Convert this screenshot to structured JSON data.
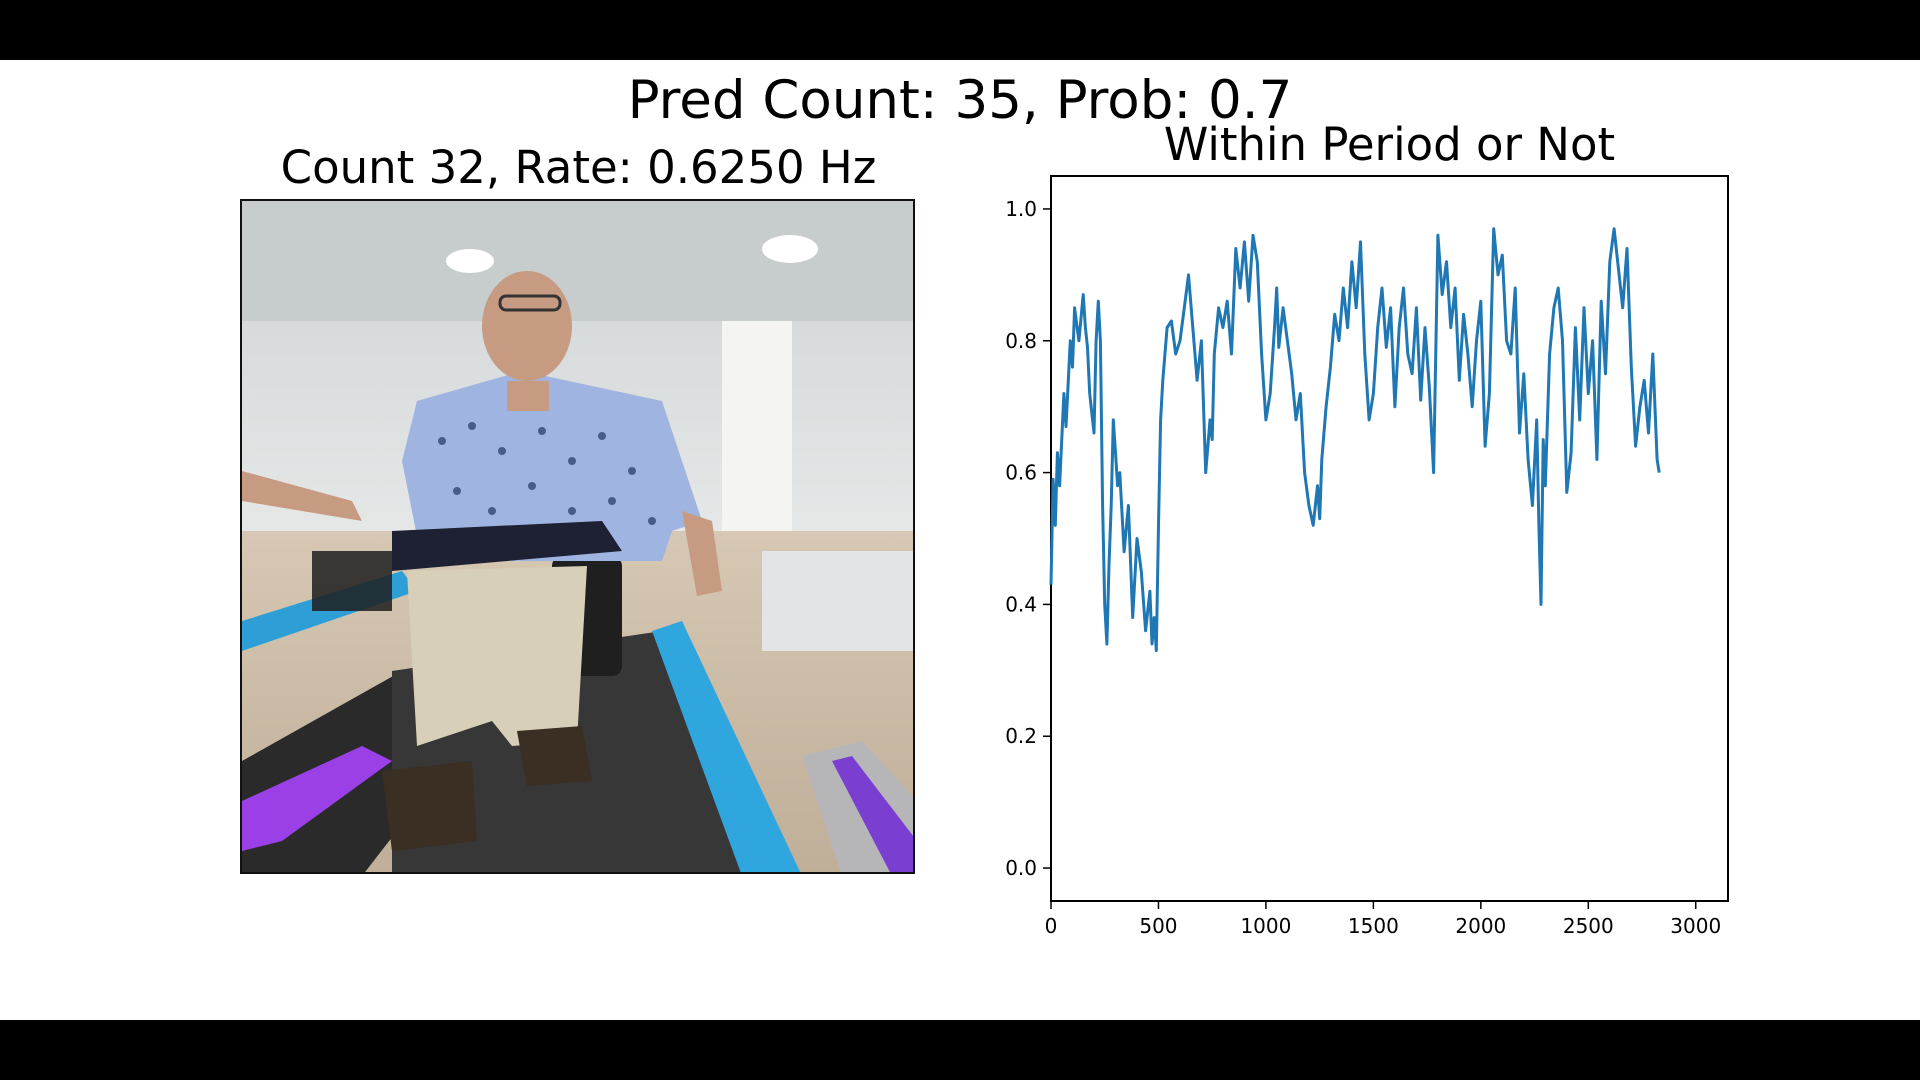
{
  "header": {
    "pred_title": "Pred Count: 35, Prob: 0.7"
  },
  "video_panel": {
    "title": "Count 32, Rate: 0.6250 Hz"
  },
  "chart_data": {
    "type": "line",
    "title": "Within Period or Not",
    "xlabel": "",
    "ylabel": "",
    "xlim": [
      0,
      3150
    ],
    "ylim": [
      -0.05,
      1.05
    ],
    "x_ticks": [
      0,
      500,
      1000,
      1500,
      2000,
      2500,
      3000
    ],
    "y_ticks": [
      0.0,
      0.2,
      0.4,
      0.6,
      0.8,
      1.0
    ],
    "x_tick_labels": [
      "0",
      "500",
      "1000",
      "1500",
      "2000",
      "2500",
      "3000"
    ],
    "y_tick_labels": [
      "0.0",
      "0.2",
      "0.4",
      "0.6",
      "0.8",
      "1.0"
    ],
    "grid": false,
    "series": [
      {
        "color": "#1f77b4",
        "x": [
          0,
          10,
          20,
          30,
          40,
          60,
          70,
          90,
          100,
          110,
          130,
          150,
          160,
          170,
          180,
          200,
          210,
          220,
          230,
          240,
          250,
          260,
          270,
          280,
          290,
          300,
          310,
          320,
          340,
          360,
          380,
          400,
          420,
          440,
          460,
          470,
          480,
          490,
          500,
          510,
          520,
          540,
          560,
          580,
          600,
          620,
          640,
          660,
          680,
          700,
          720,
          740,
          750,
          760,
          780,
          800,
          820,
          840,
          860,
          880,
          900,
          920,
          940,
          960,
          980,
          1000,
          1020,
          1040,
          1050,
          1060,
          1080,
          1100,
          1120,
          1140,
          1160,
          1180,
          1200,
          1220,
          1240,
          1250,
          1260,
          1280,
          1300,
          1320,
          1340,
          1360,
          1380,
          1400,
          1420,
          1440,
          1460,
          1480,
          1500,
          1520,
          1540,
          1560,
          1580,
          1600,
          1620,
          1640,
          1660,
          1680,
          1700,
          1720,
          1740,
          1760,
          1780,
          1800,
          1820,
          1840,
          1860,
          1880,
          1900,
          1920,
          1940,
          1960,
          1980,
          2000,
          2020,
          2040,
          2060,
          2080,
          2100,
          2120,
          2140,
          2160,
          2180,
          2200,
          2220,
          2240,
          2260,
          2270,
          2280,
          2290,
          2300,
          2320,
          2340,
          2360,
          2380,
          2400,
          2420,
          2440,
          2460,
          2480,
          2500,
          2520,
          2540,
          2560,
          2580,
          2600,
          2620,
          2640,
          2660,
          2680,
          2700,
          2720,
          2740,
          2760,
          2780,
          2800,
          2820,
          2830
        ],
        "y": [
          0.43,
          0.59,
          0.52,
          0.63,
          0.58,
          0.72,
          0.67,
          0.8,
          0.76,
          0.85,
          0.8,
          0.87,
          0.82,
          0.79,
          0.72,
          0.66,
          0.8,
          0.86,
          0.8,
          0.55,
          0.4,
          0.34,
          0.46,
          0.55,
          0.68,
          0.63,
          0.58,
          0.6,
          0.48,
          0.55,
          0.38,
          0.5,
          0.45,
          0.36,
          0.42,
          0.34,
          0.38,
          0.33,
          0.52,
          0.68,
          0.74,
          0.82,
          0.83,
          0.78,
          0.8,
          0.85,
          0.9,
          0.82,
          0.74,
          0.8,
          0.6,
          0.68,
          0.65,
          0.78,
          0.85,
          0.82,
          0.86,
          0.78,
          0.94,
          0.88,
          0.95,
          0.86,
          0.96,
          0.92,
          0.78,
          0.68,
          0.72,
          0.82,
          0.88,
          0.79,
          0.85,
          0.8,
          0.75,
          0.68,
          0.72,
          0.6,
          0.55,
          0.52,
          0.58,
          0.53,
          0.62,
          0.7,
          0.76,
          0.84,
          0.8,
          0.88,
          0.82,
          0.92,
          0.85,
          0.95,
          0.78,
          0.68,
          0.72,
          0.82,
          0.88,
          0.79,
          0.85,
          0.7,
          0.82,
          0.88,
          0.78,
          0.75,
          0.85,
          0.71,
          0.82,
          0.73,
          0.6,
          0.96,
          0.87,
          0.92,
          0.82,
          0.88,
          0.74,
          0.84,
          0.78,
          0.7,
          0.8,
          0.86,
          0.64,
          0.72,
          0.97,
          0.9,
          0.93,
          0.8,
          0.78,
          0.88,
          0.66,
          0.75,
          0.62,
          0.55,
          0.68,
          0.52,
          0.4,
          0.65,
          0.58,
          0.78,
          0.85,
          0.88,
          0.8,
          0.57,
          0.63,
          0.82,
          0.68,
          0.85,
          0.72,
          0.8,
          0.62,
          0.86,
          0.75,
          0.92,
          0.97,
          0.91,
          0.85,
          0.94,
          0.76,
          0.64,
          0.7,
          0.74,
          0.66,
          0.78,
          0.62,
          0.6
        ],
        "note": ""
      }
    ]
  }
}
